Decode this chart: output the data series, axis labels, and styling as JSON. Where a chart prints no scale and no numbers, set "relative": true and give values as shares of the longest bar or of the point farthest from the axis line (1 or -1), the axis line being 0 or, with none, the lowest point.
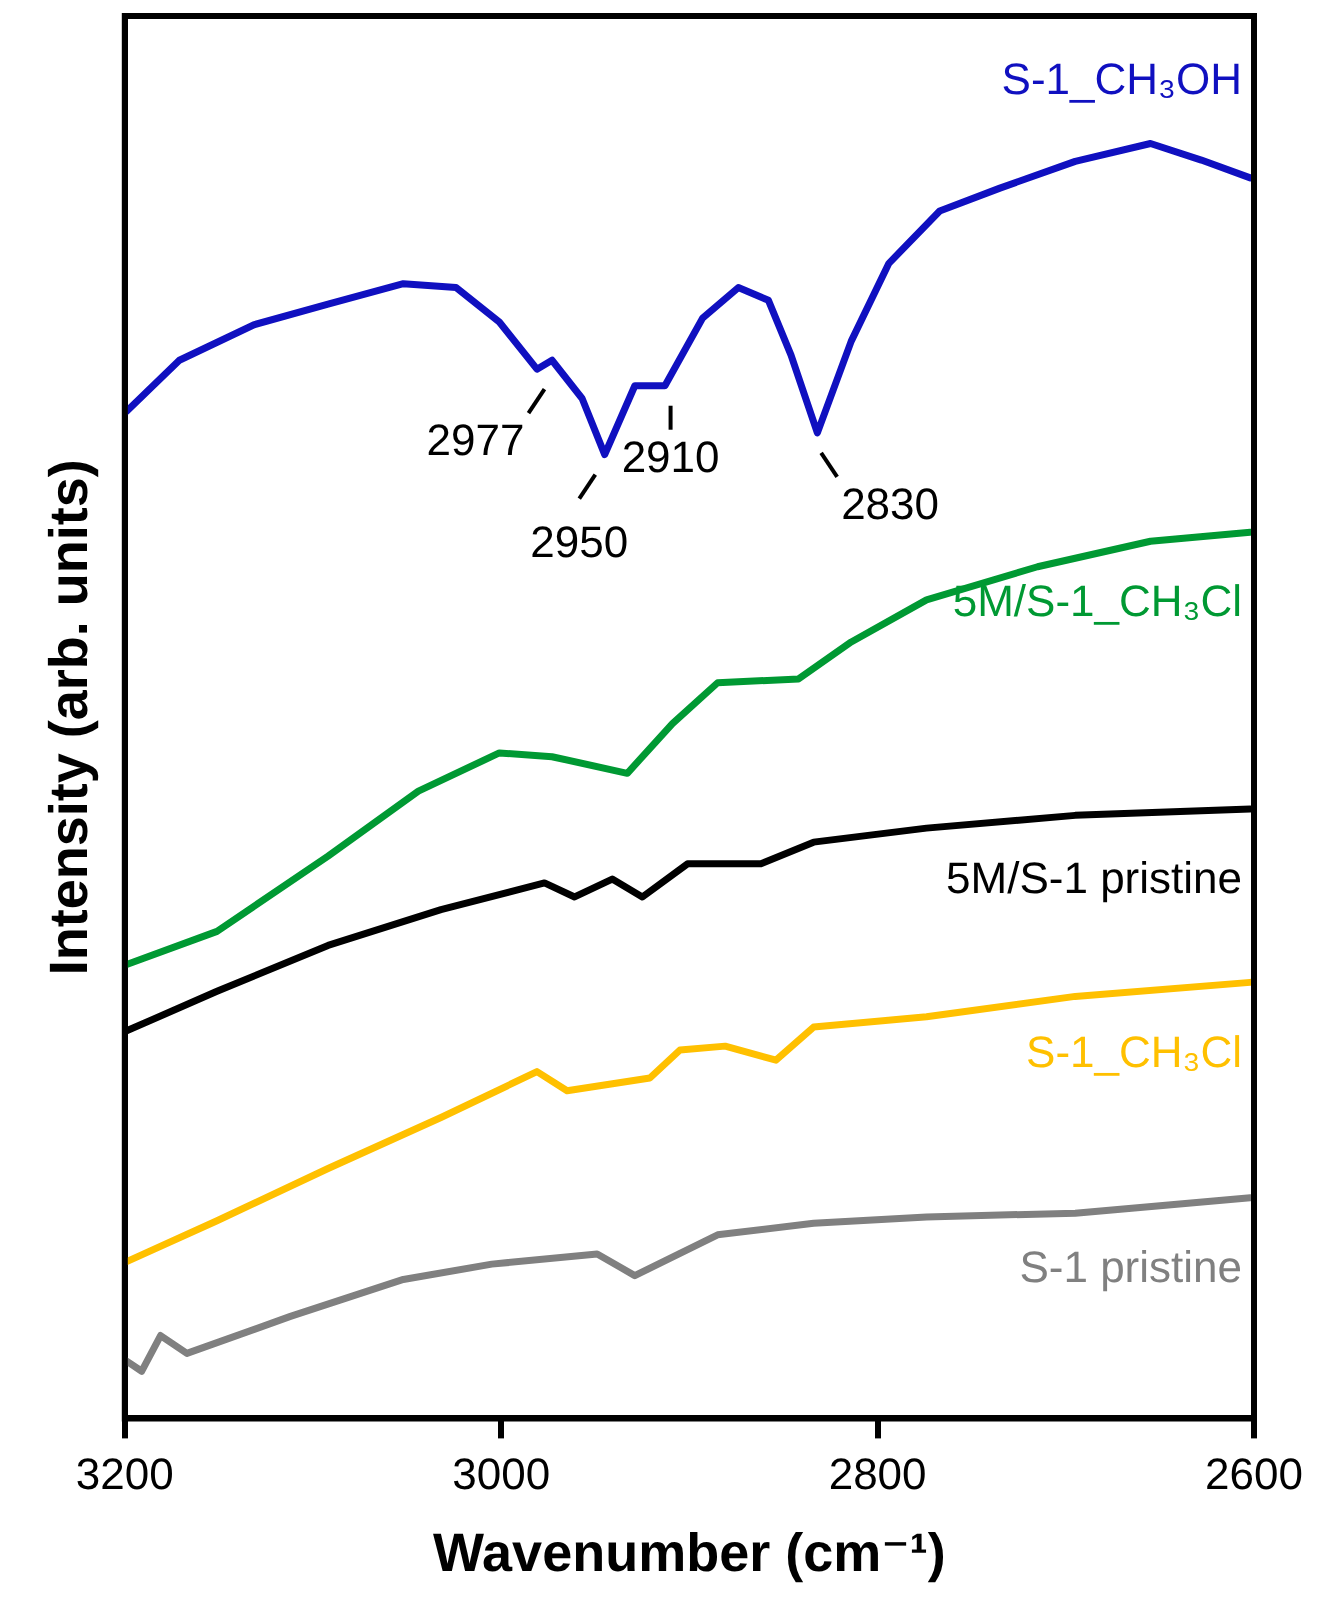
{
  "chart_data": {
    "type": "line",
    "relative": true,
    "xlabel": "Wavenumber (cm⁻¹)",
    "ylabel": "Intensity (arb. units)",
    "xlim": [
      3200,
      2600
    ],
    "xticks": [
      3200,
      3000,
      2800,
      2600
    ],
    "grid": false,
    "legend": false,
    "marker": "none",
    "line_style": "solid",
    "series": [
      {
        "name": "S-1_CH₃OH",
        "color": "#1010c0",
        "x": [
          3199,
          3171,
          3131,
          3092,
          3052,
          3024,
          3001,
          2981,
          2973,
          2957,
          2945,
          2929,
          2913,
          2893,
          2874,
          2858,
          2846,
          2832,
          2814,
          2794,
          2767,
          2735,
          2695,
          2655,
          2628,
          2602
        ],
        "values": [
          0.79,
          0.83,
          0.858,
          0.874,
          0.89,
          0.887,
          0.86,
          0.823,
          0.83,
          0.8,
          0.756,
          0.81,
          0.81,
          0.863,
          0.887,
          0.877,
          0.834,
          0.773,
          0.845,
          0.906,
          0.947,
          0.965,
          0.986,
          1.0,
          0.987,
          0.973
        ]
      },
      {
        "name": "5M/S-1_CH₃Cl",
        "color": "#009933",
        "x": [
          3199,
          3151,
          3092,
          3044,
          3001,
          2973,
          2933,
          2909,
          2885,
          2842,
          2814,
          2774,
          2715,
          2655,
          2602
        ],
        "values": [
          0.356,
          0.382,
          0.441,
          0.492,
          0.522,
          0.519,
          0.506,
          0.545,
          0.577,
          0.58,
          0.609,
          0.642,
          0.668,
          0.688,
          0.695
        ]
      },
      {
        "name": "5M/S-1 pristine",
        "color": "#000000",
        "x": [
          3199,
          3151,
          3092,
          3032,
          2977,
          2961,
          2941,
          2925,
          2901,
          2862,
          2834,
          2774,
          2695,
          2602
        ],
        "values": [
          0.304,
          0.335,
          0.371,
          0.399,
          0.42,
          0.409,
          0.423,
          0.409,
          0.435,
          0.435,
          0.452,
          0.463,
          0.473,
          0.478
        ]
      },
      {
        "name": "S-1_CH₃Cl",
        "color": "#ffc000",
        "x": [
          3199,
          3151,
          3092,
          3032,
          2981,
          2965,
          2921,
          2905,
          2881,
          2854,
          2834,
          2774,
          2695,
          2602
        ],
        "values": [
          0.123,
          0.155,
          0.196,
          0.236,
          0.272,
          0.257,
          0.267,
          0.289,
          0.292,
          0.281,
          0.307,
          0.315,
          0.331,
          0.342
        ]
      },
      {
        "name": "S-1 pristine",
        "color": "#808080",
        "x": [
          3199,
          3191,
          3181,
          3167,
          3112,
          3052,
          3005,
          2949,
          2929,
          2885,
          2834,
          2774,
          2695,
          2602
        ],
        "values": [
          0.045,
          0.037,
          0.065,
          0.051,
          0.08,
          0.109,
          0.121,
          0.129,
          0.112,
          0.144,
          0.153,
          0.158,
          0.161,
          0.173
        ]
      }
    ],
    "annotations": [
      {
        "text": "2977",
        "x": 2977,
        "y": 0.823
      },
      {
        "text": "2950",
        "x": 2950,
        "y": 0.756
      },
      {
        "text": "2910",
        "x": 2910,
        "y": 0.81
      },
      {
        "text": "2830",
        "x": 2830,
        "y": 0.773
      }
    ]
  }
}
